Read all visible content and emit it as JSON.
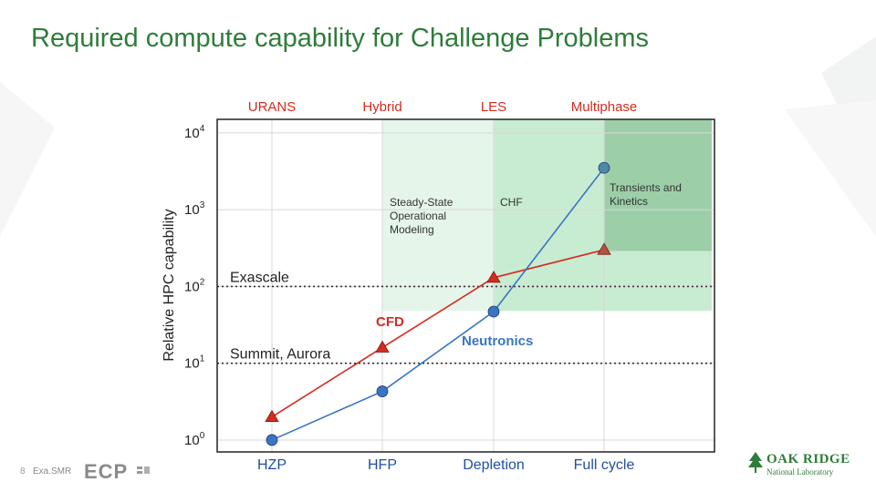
{
  "slide": {
    "title": "Required compute capability for Challenge Problems",
    "page_number": "8",
    "footer_text": "Exa.SMR",
    "ornl_line1": "OAK RIDGE",
    "ornl_line2": "National Laboratory",
    "ecp_text": "ECP"
  },
  "colors": {
    "title": "#2e7d3a",
    "cfd": "#d62b1f",
    "neutronics": "#3b74c4",
    "top_label": "#d62b1f",
    "axis_label": "#1f4fa3",
    "shade_light": "#e6f5ea",
    "shade_mid": "#c8ecd2",
    "shade_dark": "#9ccfa8"
  },
  "chart_data": {
    "type": "line",
    "categories": [
      "HZP",
      "HFP",
      "Depletion",
      "Full cycle"
    ],
    "top_labels": [
      "URANS",
      "Hybrid",
      "LES",
      "Multiphase"
    ],
    "ylabel": "Relative HPC capability",
    "y_scale": "log",
    "ylim": [
      0.7,
      15000
    ],
    "y_ticks": [
      {
        "value": 1,
        "label": "10^0"
      },
      {
        "value": 10,
        "label": "10^1"
      },
      {
        "value": 100,
        "label": "10^2"
      },
      {
        "value": 1000,
        "label": "10^3"
      },
      {
        "value": 10000,
        "label": "10^4"
      }
    ],
    "reference_lines": [
      {
        "name": "Exascale",
        "value": 100
      },
      {
        "name": "Summit, Aurora",
        "value": 10
      }
    ],
    "series": [
      {
        "name": "CFD",
        "marker": "triangle",
        "values": [
          2,
          16,
          130,
          300
        ]
      },
      {
        "name": "Neutronics",
        "marker": "circle",
        "values": [
          1,
          4.3,
          47,
          3500
        ]
      }
    ],
    "annotations": [
      {
        "text": "Steady-State Operational Modeling"
      },
      {
        "text": "CHF"
      },
      {
        "text": "Transients and Kinetics"
      }
    ],
    "shaded_regions": [
      {
        "from_category": "HFP",
        "to_category": "Full cycle",
        "y_from": 48,
        "y_to": 15000,
        "level": "light"
      },
      {
        "from_category": "Depletion",
        "to_category": "Full cycle",
        "y_from": 48,
        "y_to": 15000,
        "level": "mid"
      },
      {
        "from_category": "Full cycle",
        "to_category": "Full cycle",
        "y_from": 290,
        "y_to": 15000,
        "level": "dark"
      }
    ],
    "grid": true,
    "legend": "none"
  }
}
